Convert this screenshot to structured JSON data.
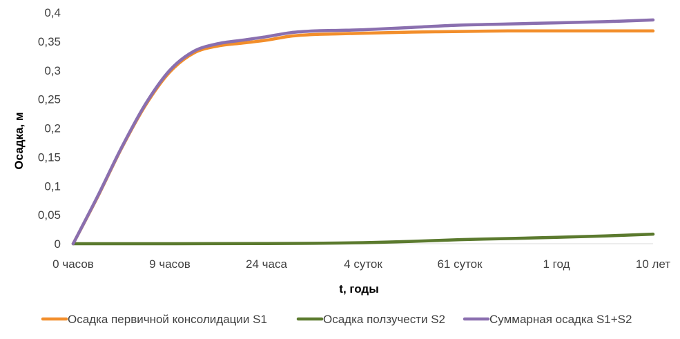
{
  "chart_data": {
    "type": "line",
    "title": "",
    "xlabel": "t, годы",
    "ylabel": "Осадка, м",
    "categories": [
      "0 часов",
      "9 часов",
      "24 часа",
      "4 суток",
      "61 суток",
      "1 год",
      "10 лет"
    ],
    "ylim": [
      0,
      0.4
    ],
    "yticks": [
      "0",
      "0,05",
      "0,1",
      "0,15",
      "0,2",
      "0,25",
      "0,3",
      "0,35",
      "0,4"
    ],
    "grid": false,
    "legend_position": "bottom",
    "series": [
      {
        "name": "Осадка первичной консолидации S1",
        "color": "#F28E2B",
        "x": [
          0,
          0.25,
          0.5,
          0.75,
          1,
          1.25,
          1.5,
          1.75,
          2,
          2.25,
          2.5,
          2.75,
          3,
          3.5,
          4,
          4.5,
          5,
          5.5,
          6
        ],
        "values": [
          0,
          0.08,
          0.165,
          0.24,
          0.297,
          0.33,
          0.342,
          0.347,
          0.352,
          0.359,
          0.362,
          0.363,
          0.364,
          0.366,
          0.367,
          0.368,
          0.368,
          0.368,
          0.368
        ]
      },
      {
        "name": "Осадка ползучести S2",
        "color": "#5B7A2E",
        "x": [
          0,
          1,
          2,
          2.5,
          3,
          3.5,
          4,
          4.5,
          5,
          5.5,
          6
        ],
        "values": [
          0,
          0,
          0.0003,
          0.0008,
          0.0018,
          0.004,
          0.007,
          0.009,
          0.011,
          0.0135,
          0.0165
        ]
      },
      {
        "name": "Суммарная осадка S1+S2",
        "color": "#8A6FAF",
        "x": [
          0,
          0.25,
          0.5,
          0.75,
          1,
          1.25,
          1.5,
          1.75,
          2,
          2.25,
          2.5,
          2.75,
          3,
          3.5,
          4,
          4.5,
          5,
          5.5,
          6
        ],
        "values": [
          0,
          0.081,
          0.166,
          0.242,
          0.3,
          0.333,
          0.346,
          0.352,
          0.358,
          0.365,
          0.368,
          0.369,
          0.37,
          0.374,
          0.378,
          0.38,
          0.382,
          0.384,
          0.387
        ]
      }
    ]
  }
}
